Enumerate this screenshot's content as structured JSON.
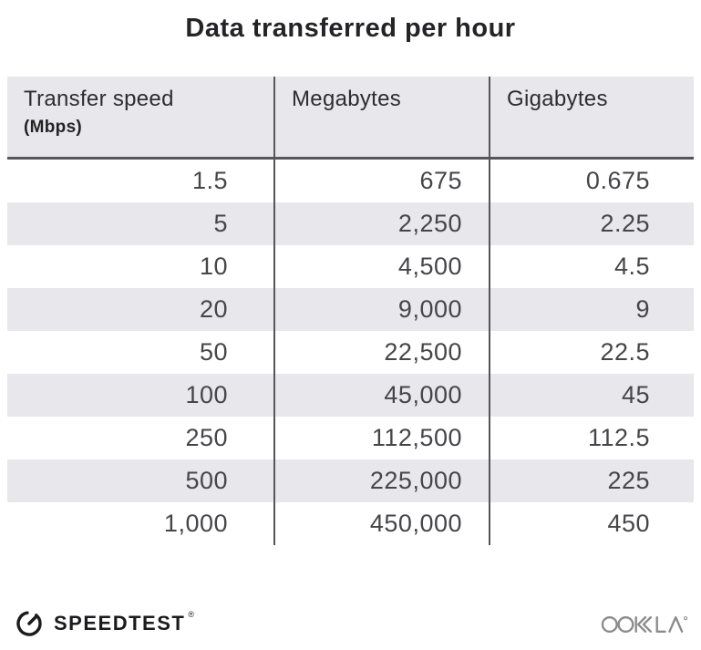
{
  "title": "Data transferred per hour",
  "table": {
    "headers": [
      {
        "label": "Transfer speed",
        "sublabel": "(Mbps)"
      },
      {
        "label": "Megabytes"
      },
      {
        "label": "Gigabytes"
      }
    ],
    "rows": [
      [
        "1.5",
        "675",
        "0.675"
      ],
      [
        "5",
        "2,250",
        "2.25"
      ],
      [
        "10",
        "4,500",
        "4.5"
      ],
      [
        "20",
        "9,000",
        "9"
      ],
      [
        "50",
        "22,500",
        "22.5"
      ],
      [
        "100",
        "45,000",
        "45"
      ],
      [
        "250",
        "112,500",
        "112.5"
      ],
      [
        "500",
        "225,000",
        "225"
      ],
      [
        "1,000",
        "450,000",
        "450"
      ]
    ]
  },
  "footer": {
    "brand": "SPEEDTEST",
    "brand_mark": "®",
    "company": "OOKLA",
    "company_mark": "®"
  },
  "colors": {
    "stripe_bg": "#e8e8ec",
    "header_bg": "#e8e8ec",
    "divider": "#55555a",
    "title_text": "#242427",
    "header_text": "#2d2d31",
    "number_text": "#46464a",
    "brand_black": "#1b1b1d",
    "ookla_gray": "#8b8b8e",
    "page_bg": "#ffffff"
  },
  "icons": {
    "gauge": "speedtest-gauge-icon",
    "ookla": "ookla-wordmark-icon"
  },
  "chart_data": {
    "type": "table",
    "title": "Data transferred per hour",
    "columns": [
      "Transfer speed (Mbps)",
      "Megabytes",
      "Gigabytes"
    ],
    "rows": [
      [
        1.5,
        675,
        0.675
      ],
      [
        5,
        2250,
        2.25
      ],
      [
        10,
        4500,
        4.5
      ],
      [
        20,
        9000,
        9
      ],
      [
        50,
        22500,
        22.5
      ],
      [
        100,
        45000,
        45
      ],
      [
        250,
        112500,
        112.5
      ],
      [
        500,
        225000,
        225
      ],
      [
        1000,
        450000,
        450
      ]
    ],
    "layout_hints": {
      "striped_rows": "even data rows shaded",
      "alignment": "numbers right-aligned",
      "grid": "vertical column dividers plus heavy rule under header"
    }
  }
}
